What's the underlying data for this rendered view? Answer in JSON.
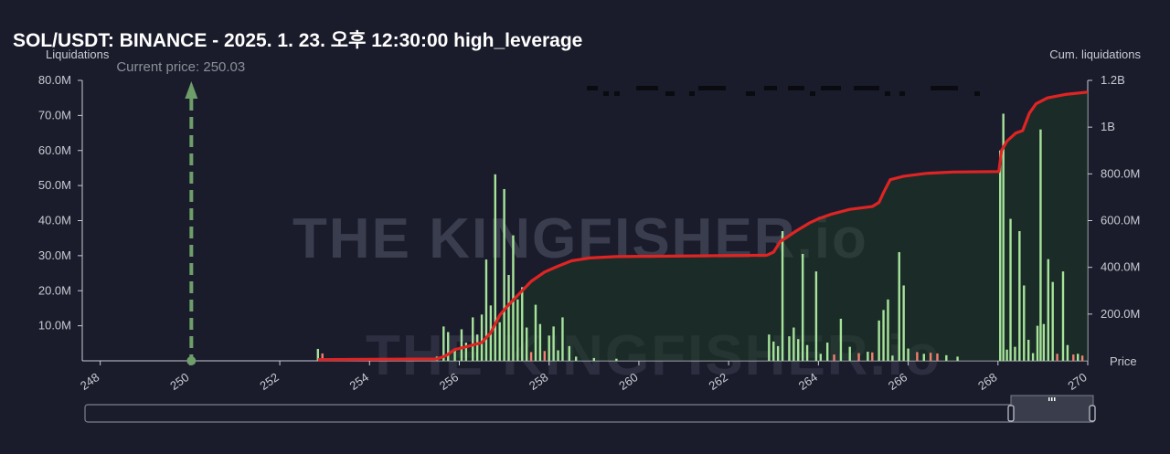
{
  "title": "SOL/USDT: BINANCE - 2025. 1. 23. 오후 12:30:00 high_leverage",
  "colors": {
    "background": "#1a1c2b",
    "bars_long": "#a6e39a",
    "bars_short": "#f08070",
    "cumulative_line": "#e02424",
    "cumulative_fill": "#1e3a26",
    "current_price": "#6e9e6a"
  },
  "watermark": "THE KINGFISHER.io",
  "chart_data": {
    "type": "bar",
    "xlabel": "Price",
    "ylabel_left": "Liquidations",
    "ylabel_right": "Cum. liquidations",
    "xlim": [
      247.6,
      270
    ],
    "ylim_left": [
      0,
      80000000
    ],
    "ylim_right": [
      0,
      1200000000
    ],
    "x_ticks": [
      "248",
      "250",
      "252",
      "254",
      "256",
      "258",
      "260",
      "262",
      "264",
      "266",
      "268",
      "270"
    ],
    "y_left_ticks": [
      "10.0M",
      "20.0M",
      "30.0M",
      "40.0M",
      "50.0M",
      "60.0M",
      "70.0M",
      "80.0M"
    ],
    "y_right_ticks": [
      "200.0M",
      "400.0M",
      "600.0M",
      "800.0M",
      "1B",
      "1.2B"
    ],
    "current_price": {
      "value": 250.03,
      "label": "Current price: 250.03"
    },
    "bars": [
      {
        "x": 252.85,
        "y": 3.4,
        "c": "g"
      },
      {
        "x": 252.95,
        "y": 2.1,
        "c": "r"
      },
      {
        "x": 255.5,
        "y": 1.2,
        "c": "g"
      },
      {
        "x": 255.65,
        "y": 9.8,
        "c": "g"
      },
      {
        "x": 255.75,
        "y": 8.2,
        "c": "g"
      },
      {
        "x": 255.9,
        "y": 3.5,
        "c": "g"
      },
      {
        "x": 256.05,
        "y": 9.0,
        "c": "g"
      },
      {
        "x": 256.15,
        "y": 5.2,
        "c": "g"
      },
      {
        "x": 256.3,
        "y": 12.4,
        "c": "g"
      },
      {
        "x": 256.4,
        "y": 7.5,
        "c": "g"
      },
      {
        "x": 256.5,
        "y": 13.2,
        "c": "g"
      },
      {
        "x": 256.6,
        "y": 28.9,
        "c": "g"
      },
      {
        "x": 256.7,
        "y": 15.8,
        "c": "g"
      },
      {
        "x": 256.8,
        "y": 53.2,
        "c": "g"
      },
      {
        "x": 256.9,
        "y": 11.0,
        "c": "g"
      },
      {
        "x": 257.0,
        "y": 49.0,
        "c": "g"
      },
      {
        "x": 257.1,
        "y": 24.5,
        "c": "g"
      },
      {
        "x": 257.2,
        "y": 35.8,
        "c": "g"
      },
      {
        "x": 257.3,
        "y": 17.5,
        "c": "g"
      },
      {
        "x": 257.4,
        "y": 21.0,
        "c": "g"
      },
      {
        "x": 257.5,
        "y": 9.5,
        "c": "g"
      },
      {
        "x": 257.6,
        "y": 2.5,
        "c": "r"
      },
      {
        "x": 257.7,
        "y": 16.0,
        "c": "g"
      },
      {
        "x": 257.8,
        "y": 10.5,
        "c": "g"
      },
      {
        "x": 257.9,
        "y": 2.8,
        "c": "r"
      },
      {
        "x": 258.0,
        "y": 7.2,
        "c": "g"
      },
      {
        "x": 258.1,
        "y": 9.8,
        "c": "g"
      },
      {
        "x": 258.2,
        "y": 3.0,
        "c": "g"
      },
      {
        "x": 258.3,
        "y": 12.4,
        "c": "g"
      },
      {
        "x": 258.45,
        "y": 4.2,
        "c": "g"
      },
      {
        "x": 258.6,
        "y": 1.2,
        "c": "g"
      },
      {
        "x": 259.0,
        "y": 0.8,
        "c": "g"
      },
      {
        "x": 259.5,
        "y": 0.6,
        "c": "g"
      },
      {
        "x": 262.9,
        "y": 7.5,
        "c": "g"
      },
      {
        "x": 263.0,
        "y": 5.5,
        "c": "g"
      },
      {
        "x": 263.1,
        "y": 4.2,
        "c": "g"
      },
      {
        "x": 263.2,
        "y": 37.0,
        "c": "g"
      },
      {
        "x": 263.35,
        "y": 7.0,
        "c": "g"
      },
      {
        "x": 263.45,
        "y": 9.5,
        "c": "g"
      },
      {
        "x": 263.55,
        "y": 6.2,
        "c": "g"
      },
      {
        "x": 263.65,
        "y": 30.5,
        "c": "g"
      },
      {
        "x": 263.75,
        "y": 4.5,
        "c": "g"
      },
      {
        "x": 263.95,
        "y": 25.5,
        "c": "g"
      },
      {
        "x": 264.05,
        "y": 2.0,
        "c": "g"
      },
      {
        "x": 264.2,
        "y": 5.2,
        "c": "g"
      },
      {
        "x": 264.35,
        "y": 1.8,
        "c": "r"
      },
      {
        "x": 264.5,
        "y": 12.0,
        "c": "g"
      },
      {
        "x": 264.7,
        "y": 4.0,
        "c": "g"
      },
      {
        "x": 264.9,
        "y": 2.2,
        "c": "r"
      },
      {
        "x": 265.1,
        "y": 2.6,
        "c": "g"
      },
      {
        "x": 265.2,
        "y": 2.4,
        "c": "r"
      },
      {
        "x": 265.35,
        "y": 11.5,
        "c": "g"
      },
      {
        "x": 265.45,
        "y": 14.5,
        "c": "g"
      },
      {
        "x": 265.55,
        "y": 17.5,
        "c": "g"
      },
      {
        "x": 265.65,
        "y": 1.5,
        "c": "g"
      },
      {
        "x": 265.8,
        "y": 31.0,
        "c": "g"
      },
      {
        "x": 265.9,
        "y": 21.5,
        "c": "g"
      },
      {
        "x": 266.0,
        "y": 3.5,
        "c": "g"
      },
      {
        "x": 266.2,
        "y": 2.5,
        "c": "r"
      },
      {
        "x": 266.35,
        "y": 2.0,
        "c": "g"
      },
      {
        "x": 266.5,
        "y": 2.3,
        "c": "r"
      },
      {
        "x": 266.65,
        "y": 2.1,
        "c": "r"
      },
      {
        "x": 266.85,
        "y": 1.6,
        "c": "g"
      },
      {
        "x": 267.1,
        "y": 1.2,
        "c": "g"
      },
      {
        "x": 268.05,
        "y": 60.0,
        "c": "g"
      },
      {
        "x": 268.12,
        "y": 70.5,
        "c": "g"
      },
      {
        "x": 268.2,
        "y": 3.2,
        "c": "g"
      },
      {
        "x": 268.28,
        "y": 40.5,
        "c": "g"
      },
      {
        "x": 268.38,
        "y": 4.0,
        "c": "g"
      },
      {
        "x": 268.48,
        "y": 37.0,
        "c": "g"
      },
      {
        "x": 268.58,
        "y": 21.5,
        "c": "g"
      },
      {
        "x": 268.68,
        "y": 6.0,
        "c": "g"
      },
      {
        "x": 268.78,
        "y": 2.2,
        "c": "g"
      },
      {
        "x": 268.88,
        "y": 10.0,
        "c": "g"
      },
      {
        "x": 268.95,
        "y": 66.0,
        "c": "g"
      },
      {
        "x": 269.02,
        "y": 10.5,
        "c": "g"
      },
      {
        "x": 269.12,
        "y": 29.0,
        "c": "g"
      },
      {
        "x": 269.22,
        "y": 22.5,
        "c": "g"
      },
      {
        "x": 269.32,
        "y": 2.0,
        "c": "r"
      },
      {
        "x": 269.45,
        "y": 25.5,
        "c": "g"
      },
      {
        "x": 269.55,
        "y": 4.5,
        "c": "g"
      },
      {
        "x": 269.68,
        "y": 1.8,
        "c": "r"
      },
      {
        "x": 269.78,
        "y": 2.0,
        "c": "g"
      },
      {
        "x": 269.88,
        "y": 1.5,
        "c": "r"
      }
    ],
    "cumulative": [
      [
        252.85,
        5
      ],
      [
        255.5,
        8
      ],
      [
        255.7,
        22
      ],
      [
        255.9,
        48
      ],
      [
        256.2,
        62
      ],
      [
        256.5,
        78
      ],
      [
        256.7,
        120
      ],
      [
        256.9,
        195
      ],
      [
        257.1,
        240
      ],
      [
        257.4,
        300
      ],
      [
        257.6,
        340
      ],
      [
        257.9,
        380
      ],
      [
        258.2,
        405
      ],
      [
        258.5,
        428
      ],
      [
        258.9,
        440
      ],
      [
        259.5,
        446
      ],
      [
        262.85,
        452
      ],
      [
        263.0,
        465
      ],
      [
        263.15,
        510
      ],
      [
        263.5,
        555
      ],
      [
        263.8,
        590
      ],
      [
        264.0,
        608
      ],
      [
        264.3,
        628
      ],
      [
        264.7,
        648
      ],
      [
        265.2,
        660
      ],
      [
        265.35,
        678
      ],
      [
        265.45,
        720
      ],
      [
        265.6,
        775
      ],
      [
        265.9,
        790
      ],
      [
        266.4,
        802
      ],
      [
        267.0,
        808
      ],
      [
        268.02,
        810
      ],
      [
        268.08,
        900
      ],
      [
        268.2,
        940
      ],
      [
        268.4,
        975
      ],
      [
        268.55,
        985
      ],
      [
        268.7,
        1060
      ],
      [
        268.85,
        1100
      ],
      [
        269.1,
        1125
      ],
      [
        269.5,
        1140
      ],
      [
        270.0,
        1150
      ]
    ]
  }
}
